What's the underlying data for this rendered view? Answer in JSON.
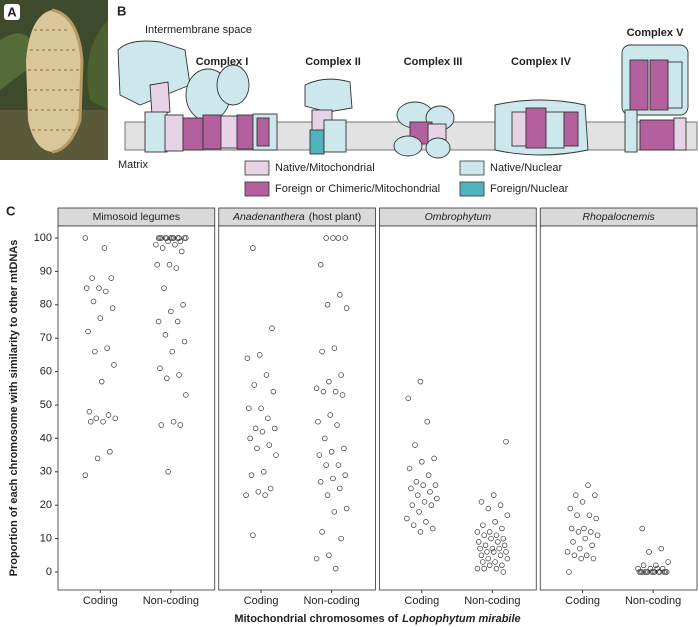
{
  "panel_labels": [
    "A",
    "B",
    "C"
  ],
  "diagram": {
    "compartments": [
      "Intermembrane space",
      "Matrix"
    ],
    "complexes": [
      "Complex I",
      "Complex II",
      "Complex III",
      "Complex IV",
      "Complex V"
    ],
    "legend": [
      {
        "label": "Native/Mitochondrial",
        "color": "#e6d3e6"
      },
      {
        "label": "Native/Nuclear",
        "color": "#cde8ec"
      },
      {
        "label": "Foreign or Chimeric/Mitochondrial",
        "color": "#b4609f"
      },
      {
        "label": "Foreign/Nuclear",
        "color": "#4fb3bd"
      }
    ]
  },
  "chart_data": {
    "type": "scatter",
    "ylabel": "Proportion of each chromosome with similarity to other mtDNAs",
    "xlabel": "Mitochondrial chromosomes of",
    "xlabel_italic": "Lophophytum mirabile",
    "categories": [
      "Coding",
      "Non-coding"
    ],
    "ylim": [
      -5.4,
      103.6
    ],
    "yticks": [
      0,
      10,
      20,
      30,
      40,
      50,
      60,
      70,
      80,
      90,
      100
    ],
    "grid": false,
    "facets": [
      {
        "title": "Mimosoid legumes",
        "italic": false,
        "values": [
          [
            100,
            97,
            88,
            88,
            85,
            85,
            84,
            81,
            79,
            76,
            72,
            67,
            66,
            62,
            57,
            48,
            47,
            46,
            46,
            45,
            45,
            36,
            34,
            29
          ],
          [
            100,
            100,
            100,
            100,
            100,
            100,
            100,
            100,
            100,
            100,
            100,
            100,
            99,
            99,
            98,
            98,
            97,
            96,
            92,
            92,
            91,
            85,
            80,
            78,
            75,
            75,
            71,
            69,
            66,
            61,
            59,
            58,
            53,
            45,
            44,
            44,
            30
          ]
        ]
      },
      {
        "title": "Anadenanthera",
        "title_suffix": "(host plant)",
        "italic": true,
        "values": [
          [
            97,
            73,
            65,
            64,
            59,
            56,
            54,
            49,
            49,
            46,
            43,
            43,
            42,
            40,
            38,
            37,
            35,
            30,
            29,
            25,
            24,
            23,
            23,
            11
          ],
          [
            100,
            100,
            100,
            100,
            92,
            83,
            80,
            79,
            67,
            66,
            59,
            57,
            55,
            54,
            54,
            53,
            47,
            45,
            44,
            40,
            37,
            36,
            35,
            32,
            32,
            29,
            28,
            27,
            25,
            23,
            19,
            18,
            12,
            10,
            5,
            4,
            1
          ]
        ]
      },
      {
        "title": "Ombrophytum",
        "italic": true,
        "values": [
          [
            57,
            52,
            45,
            38,
            34,
            33,
            31,
            29,
            27,
            26,
            26,
            25,
            24,
            23,
            22,
            21,
            20,
            20,
            18,
            16,
            15,
            14,
            13,
            12
          ],
          [
            39,
            23,
            21,
            20,
            19,
            17,
            15,
            14,
            13,
            12,
            12,
            11,
            11,
            10,
            10,
            9,
            9,
            8,
            8,
            7,
            7,
            7,
            6,
            6,
            6,
            5,
            5,
            4,
            4,
            3,
            3,
            2,
            2,
            1,
            1,
            1,
            0
          ]
        ]
      },
      {
        "title": "Rhopalocnemis",
        "italic": true,
        "values": [
          [
            26,
            23,
            23,
            21,
            19,
            17,
            17,
            16,
            13,
            13,
            12,
            12,
            11,
            10,
            9,
            8,
            7,
            6,
            5,
            5,
            4,
            4,
            0
          ],
          [
            13,
            7,
            6,
            3,
            2,
            2,
            1,
            1,
            1,
            1,
            0,
            0,
            0,
            0,
            0,
            0,
            0,
            0,
            0,
            0,
            0,
            0,
            0,
            0
          ]
        ]
      }
    ]
  }
}
